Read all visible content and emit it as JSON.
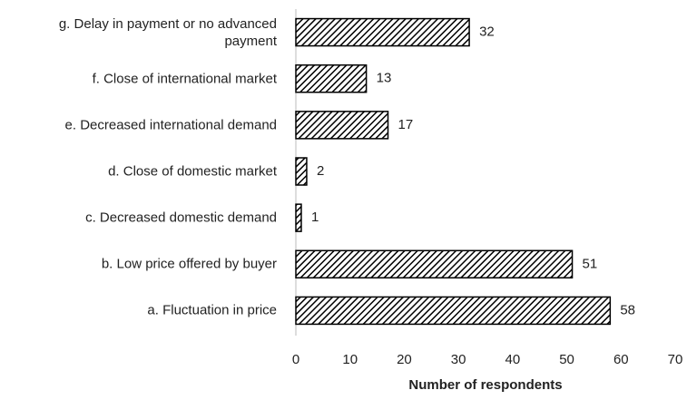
{
  "chart_data": {
    "type": "hbar",
    "categories": [
      "a. Fluctuation in price",
      "b. Low price offered by buyer",
      "c. Decreased domestic demand",
      "d. Close of domestic market",
      "e. Decreased international demand",
      "f. Close of international market",
      "g. Delay in payment or no advanced payment"
    ],
    "values": [
      58,
      51,
      1,
      2,
      17,
      13,
      32
    ],
    "color": "#000000",
    "xlabel": "Number of respondents",
    "xlim": [
      0,
      70
    ],
    "xticks": [
      0,
      10,
      20,
      30,
      40,
      50,
      60,
      70
    ],
    "grid": false
  }
}
